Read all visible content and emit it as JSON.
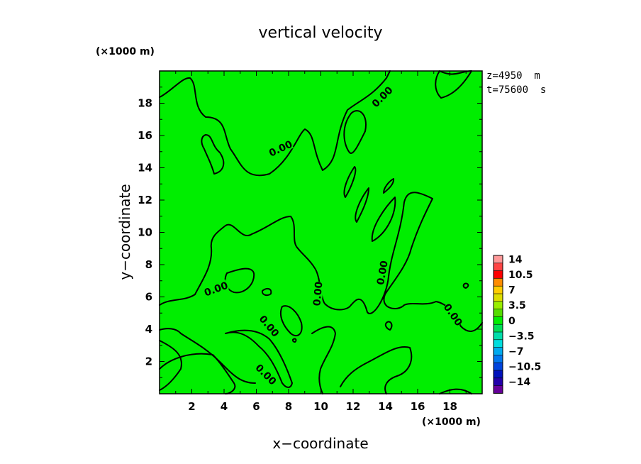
{
  "chart_data": {
    "type": "contour",
    "title": "vertical velocity",
    "xlabel": "x−coordinate",
    "ylabel": "y−coordinate",
    "x_unit": "(×1000 m)",
    "y_unit": "(×1000 m)",
    "xlim": [
      0,
      20
    ],
    "ylim": [
      0,
      20
    ],
    "x_ticks": [
      2,
      4,
      6,
      8,
      10,
      12,
      14,
      16,
      18
    ],
    "y_ticks": [
      2,
      4,
      6,
      8,
      10,
      12,
      14,
      16,
      18
    ],
    "x_tick_labels": [
      "2",
      "4",
      "6",
      "8",
      "10",
      "12",
      "14",
      "16",
      "18"
    ],
    "y_tick_labels": [
      "2",
      "4",
      "6",
      "8",
      "10",
      "12",
      "14",
      "16",
      "18"
    ],
    "annotations": [
      "z=4950  m",
      "t=75600  s"
    ],
    "fill_color": "#00ee00",
    "contour_level": 0,
    "contour_label": "0.00",
    "contour_label_positions": [
      {
        "x": 7.5,
        "y": 15.2
      },
      {
        "x": 13.8,
        "y": 18.4
      },
      {
        "x": 3.5,
        "y": 6.5
      },
      {
        "x": 9.8,
        "y": 6.2
      },
      {
        "x": 13.8,
        "y": 7.5
      },
      {
        "x": 6.8,
        "y": 4.2
      },
      {
        "x": 6.6,
        "y": 1.2
      },
      {
        "x": 18.2,
        "y": 4.9
      }
    ],
    "colorbar": {
      "labels": [
        "14",
        "10.5",
        "7",
        "3.5",
        "0",
        "−3.5",
        "−7",
        "−10.5",
        "−14"
      ],
      "colors": [
        "#ff9999",
        "#ff4444",
        "#ff0000",
        "#ff8c00",
        "#ffcc00",
        "#dddd00",
        "#99ee00",
        "#55dd00",
        "#00ee00",
        "#00dd55",
        "#00ddaa",
        "#00dddd",
        "#00aaee",
        "#0077ee",
        "#0044dd",
        "#0011bb",
        "#2200aa",
        "#660099"
      ]
    }
  }
}
